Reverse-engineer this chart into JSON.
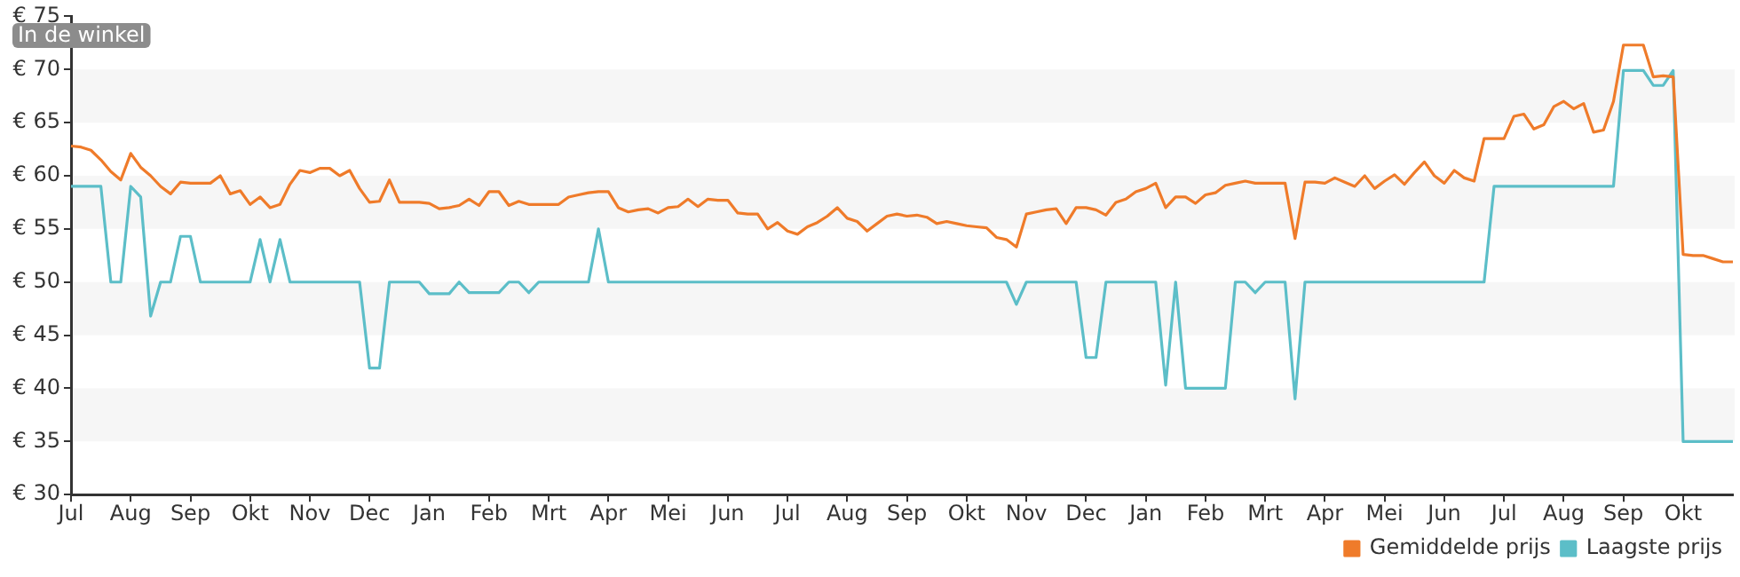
{
  "chart_data": {
    "type": "line",
    "annotations": [
      "In de winkel"
    ],
    "categories": [
      "Jul",
      null,
      null,
      null,
      null,
      null,
      "Aug",
      null,
      null,
      null,
      null,
      null,
      "Sep",
      null,
      null,
      null,
      null,
      null,
      "Okt",
      null,
      null,
      null,
      null,
      null,
      "Nov",
      null,
      null,
      null,
      null,
      null,
      "Dec",
      null,
      null,
      null,
      null,
      null,
      "Jan",
      null,
      null,
      null,
      null,
      null,
      "Feb",
      null,
      null,
      null,
      null,
      null,
      "Mrt",
      null,
      null,
      null,
      null,
      null,
      "Apr",
      null,
      null,
      null,
      null,
      null,
      "Mei",
      null,
      null,
      null,
      null,
      null,
      "Jun",
      null,
      null,
      null,
      null,
      null,
      "Jul",
      null,
      null,
      null,
      null,
      null,
      "Aug",
      null,
      null,
      null,
      null,
      null,
      "Sep",
      null,
      null,
      null,
      null,
      null,
      "Okt",
      null,
      null,
      null,
      null,
      null,
      "Nov",
      null,
      null,
      null,
      null,
      null,
      "Dec",
      null,
      null,
      null,
      null,
      null,
      "Jan",
      null,
      null,
      null,
      null,
      null,
      "Feb",
      null,
      null,
      null,
      null,
      null,
      "Mrt",
      null,
      null,
      null,
      null,
      null,
      "Apr",
      null,
      null,
      null,
      null,
      null,
      "Mei",
      null,
      null,
      null,
      null,
      null,
      "Jun",
      null,
      null,
      null,
      null,
      null,
      "Jul",
      null,
      null,
      null,
      null,
      null,
      "Aug",
      null,
      null,
      null,
      null,
      null,
      "Sep",
      null,
      null,
      null,
      null,
      null,
      "Okt",
      null,
      null,
      null,
      null,
      null
    ],
    "ylim": [
      30,
      75
    ],
    "yticks": [
      {
        "value": 30,
        "label": "€ 30"
      },
      {
        "value": 35,
        "label": "€ 35"
      },
      {
        "value": 40,
        "label": "€ 40"
      },
      {
        "value": 45,
        "label": "€ 45"
      },
      {
        "value": 50,
        "label": "€ 50"
      },
      {
        "value": 55,
        "label": "€ 55"
      },
      {
        "value": 60,
        "label": "€ 60"
      },
      {
        "value": 65,
        "label": "€ 65"
      },
      {
        "value": 70,
        "label": "€ 70"
      },
      {
        "value": 75,
        "label": "€ 75"
      }
    ],
    "bands": [
      {
        "axis": "y",
        "from": 65,
        "to": 70,
        "color": "#f6f6f6"
      },
      {
        "axis": "y",
        "from": 55,
        "to": 60,
        "color": "#f6f6f6"
      },
      {
        "axis": "y",
        "from": 45,
        "to": 50,
        "color": "#f6f6f6"
      },
      {
        "axis": "y",
        "from": 35,
        "to": 40,
        "color": "#f6f6f6"
      }
    ],
    "legend": "bottom right",
    "marker": "none",
    "line_style": "solid",
    "series": [
      {
        "name": "Gemiddelde prijs",
        "color": "#ef7b2a",
        "values": [
          62.8,
          62.7,
          62.4,
          61.5,
          60.4,
          59.6,
          62.1,
          60.8,
          60,
          59,
          58.3,
          59.4,
          59.3,
          59.3,
          59.3,
          60,
          58.3,
          58.6,
          57.3,
          58,
          57,
          57.3,
          59.2,
          60.5,
          60.3,
          60.7,
          60.7,
          60,
          60.5,
          58.8,
          57.5,
          57.6,
          59.6,
          57.5,
          57.5,
          57.5,
          57.4,
          56.9,
          57,
          57.2,
          57.8,
          57.2,
          58.5,
          58.5,
          57.2,
          57.6,
          57.3,
          57.3,
          57.3,
          57.3,
          58,
          58.2,
          58.4,
          58.5,
          58.5,
          57,
          56.6,
          56.8,
          56.9,
          56.5,
          57,
          57.1,
          57.8,
          57.1,
          57.8,
          57.7,
          57.7,
          56.5,
          56.4,
          56.4,
          55,
          55.6,
          54.8,
          54.5,
          55.2,
          55.6,
          56.2,
          57,
          56,
          55.7,
          54.8,
          55.5,
          56.2,
          56.4,
          56.2,
          56.3,
          56.1,
          55.5,
          55.7,
          55.5,
          55.3,
          55.2,
          55.1,
          54.2,
          54,
          53.3,
          56.4,
          56.6,
          56.8,
          56.9,
          55.5,
          57,
          57,
          56.8,
          56.3,
          57.5,
          57.8,
          58.5,
          58.8,
          59.3,
          57,
          58,
          58,
          57.4,
          58.2,
          58.4,
          59.1,
          59.3,
          59.5,
          59.3,
          59.3,
          59.3,
          59.3,
          54.1,
          59.4,
          59.4,
          59.3,
          59.8,
          59.4,
          59,
          60,
          58.8,
          59.5,
          60.1,
          59.2,
          60.3,
          61.3,
          60,
          59.3,
          60.5,
          59.8,
          59.5,
          63.5,
          63.5,
          63.5,
          65.6,
          65.8,
          64.4,
          64.8,
          66.5,
          67,
          66.3,
          66.8,
          64.1,
          64.3,
          67,
          72.3,
          72.3,
          72.3,
          69.3,
          69.4,
          69.3,
          52.6,
          52.5,
          52.5,
          52.2,
          51.9,
          51.9
        ]
      },
      {
        "name": "Laagste prijs",
        "color": "#5cbec8",
        "values": [
          59,
          59,
          59,
          59,
          50,
          50,
          59,
          58,
          46.8,
          50,
          50,
          54.3,
          54.3,
          50,
          50,
          50,
          50,
          50,
          50,
          54,
          50,
          54,
          50,
          50,
          50,
          50,
          50,
          50,
          50,
          50,
          41.9,
          41.9,
          50,
          50,
          50,
          50,
          48.9,
          48.9,
          48.9,
          50,
          49,
          49,
          49,
          49,
          50,
          50,
          49,
          50,
          50,
          50,
          50,
          50,
          50,
          55,
          50,
          50,
          50,
          50,
          50,
          50,
          50,
          50,
          50,
          50,
          50,
          50,
          50,
          50,
          50,
          50,
          50,
          50,
          50,
          50,
          50,
          50,
          50,
          50,
          50,
          50,
          50,
          50,
          50,
          50,
          50,
          50,
          50,
          50,
          50,
          50,
          50,
          50,
          50,
          50,
          50,
          47.9,
          50,
          50,
          50,
          50,
          50,
          50,
          42.9,
          42.9,
          50,
          50,
          50,
          50,
          50,
          50,
          40.3,
          50,
          40,
          40,
          40,
          40,
          40,
          50,
          50,
          49,
          50,
          50,
          50,
          39,
          50,
          50,
          50,
          50,
          50,
          50,
          50,
          50,
          50,
          50,
          50,
          50,
          50,
          50,
          50,
          50,
          50,
          50,
          50,
          59,
          59,
          59,
          59,
          59,
          59,
          59,
          59,
          59,
          59,
          59,
          59,
          59,
          69.9,
          69.9,
          69.9,
          68.5,
          68.5,
          69.9,
          35,
          35,
          35,
          35,
          35,
          35
        ]
      }
    ]
  }
}
